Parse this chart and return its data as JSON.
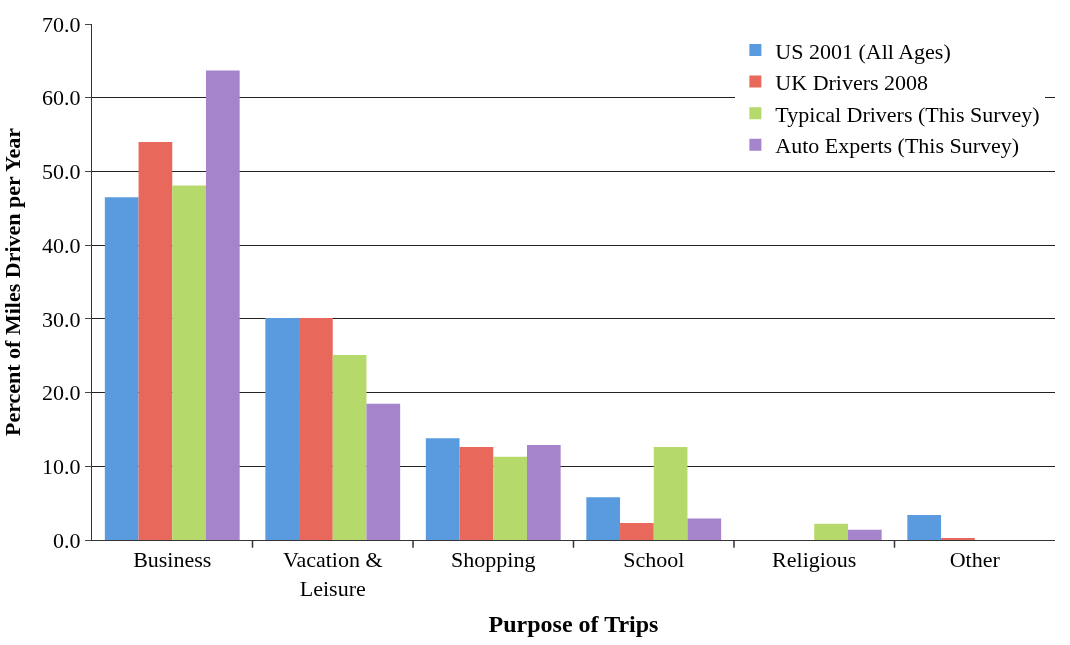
{
  "chart_data": {
    "type": "bar",
    "xlabel": "Purpose of Trips",
    "ylabel": "Percent of Miles Driven per Year",
    "categories": [
      "Business",
      "Vacation & Leisure",
      "Shopping",
      "School",
      "Religious",
      "Other"
    ],
    "series": [
      {
        "name": "US 2001 (All Ages)",
        "color": "#5a9be0",
        "values": [
          46.5,
          30.1,
          13.8,
          5.8,
          null,
          3.4
        ]
      },
      {
        "name": "UK Drivers 2008",
        "color": "#e8685c",
        "values": [
          54.0,
          30.1,
          12.6,
          2.3,
          null,
          0.2
        ]
      },
      {
        "name": "Typical Drivers (This Survey)",
        "color": "#b5d96a",
        "values": [
          48.1,
          25.1,
          11.3,
          12.6,
          2.2,
          null
        ]
      },
      {
        "name": "Auto Experts (This Survey)",
        "color": "#a584cc",
        "values": [
          63.7,
          18.5,
          12.9,
          2.9,
          1.4,
          null
        ]
      }
    ],
    "ylim": [
      0,
      70
    ],
    "yticks": [
      {
        "value": 0,
        "label": "0.0"
      },
      {
        "value": 10,
        "label": "10.0"
      },
      {
        "value": 20,
        "label": "20.0"
      },
      {
        "value": 30,
        "label": "30.0"
      },
      {
        "value": 40,
        "label": "40.0"
      },
      {
        "value": 50,
        "label": "50.0"
      },
      {
        "value": 60,
        "label": "60.0"
      },
      {
        "value": 70,
        "label": "70.0"
      }
    ],
    "grid": "y",
    "legend": "top right"
  }
}
